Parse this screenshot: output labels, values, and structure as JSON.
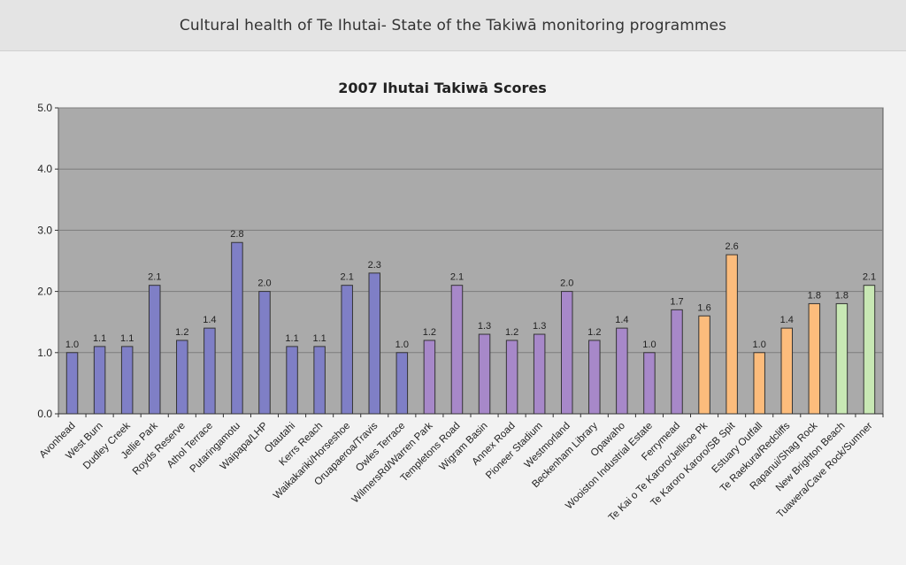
{
  "header": {
    "title": "Cultural health of Te Ihutai- State of the Takiwā monitoring programmes"
  },
  "colors": {
    "blue": "#7f7fc6",
    "purple": "#a788c9",
    "orange": "#fcbc7c",
    "green": "#c8e8b4",
    "plot_bg": "#aaaaaa",
    "gridline": "#7d7d7d"
  },
  "chart_data": {
    "type": "bar",
    "title": "2007 Ihutai Takiwā Scores",
    "xlabel": "",
    "ylabel": "",
    "ylim": [
      0,
      5
    ],
    "yticks": [
      "0.0",
      "1.0",
      "2.0",
      "3.0",
      "4.0",
      "5.0"
    ],
    "grid": true,
    "legend": "none",
    "categories": [
      "Avonhead",
      "West Burn",
      "Dudley Creek",
      "Jellie Park",
      "Royds Reserve",
      "Athol Terrace",
      "Putaringamotu",
      "Waipapa/LHP",
      "Otautahi",
      "Kerrs Reach",
      "Waikakariki/Horseshoe",
      "Oruapaeroa/Travis",
      "Owles Terrace",
      "WilmersRd/Warren Park",
      "Templetons Road",
      "Wigram Basin",
      "Annex Road",
      "Pioneer Stadium",
      "Westmorland",
      "Beckenham Library",
      "Opawaho",
      "Wooiston Industrial Estate",
      "Ferrymead",
      "Te Kai o Te Karoro/Jellicoe Pk",
      "Te Karoro Karoro/SB Spit",
      "Estuary Outfall",
      "Te Raekura/Redcliffs",
      "Rapanui/Shag Rock",
      "New Brighton Beach",
      "Tuawera/Cave Rock/Sumner"
    ],
    "values": [
      1.0,
      1.1,
      1.1,
      2.1,
      1.2,
      1.4,
      2.8,
      2.0,
      1.1,
      1.1,
      2.1,
      2.3,
      1.0,
      1.2,
      2.1,
      1.3,
      1.2,
      1.3,
      2.0,
      1.2,
      1.4,
      1.0,
      1.7,
      1.6,
      2.6,
      1.0,
      1.4,
      1.8,
      1.8,
      2.1
    ],
    "data_labels": [
      "1.0",
      "1.1",
      "1.1",
      "2.1",
      "1.2",
      "1.4",
      "2.8",
      "2.0",
      "1.1",
      "1.1",
      "2.1",
      "2.3",
      "1.0",
      "1.2",
      "2.1",
      "1.3",
      "1.2",
      "1.3",
      "2.0",
      "1.2",
      "1.4",
      "1.0",
      "1.7",
      "1.6",
      "2.6",
      "1.0",
      "1.4",
      "1.8",
      "1.8",
      "2.1"
    ],
    "bar_colors": [
      "blue",
      "blue",
      "blue",
      "blue",
      "blue",
      "blue",
      "blue",
      "blue",
      "blue",
      "blue",
      "blue",
      "blue",
      "blue",
      "purple",
      "purple",
      "purple",
      "purple",
      "purple",
      "purple",
      "purple",
      "purple",
      "purple",
      "purple",
      "orange",
      "orange",
      "orange",
      "orange",
      "orange",
      "green",
      "green"
    ]
  }
}
